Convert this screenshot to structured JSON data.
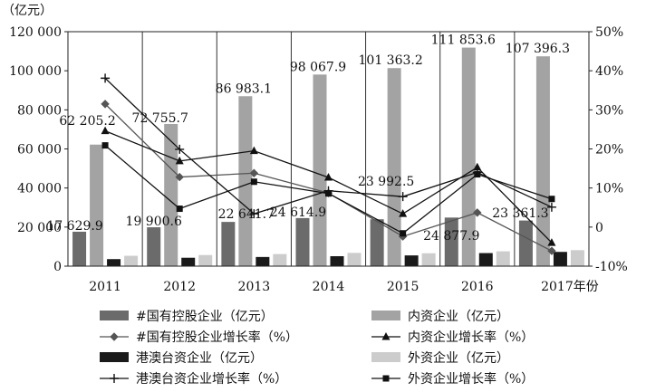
{
  "chart_data": {
    "type": "bar",
    "title": "",
    "y_unit_label": "（亿元）",
    "categories": [
      "2011",
      "2012",
      "2013",
      "2014",
      "2015",
      "2016",
      "2017年份"
    ],
    "ylim": [
      0,
      120000
    ],
    "y_ticks": [
      "0",
      "20 000",
      "40 000",
      "60 000",
      "80 000",
      "100 000",
      "120 000"
    ],
    "y2lim": [
      -10,
      50
    ],
    "y2_ticks": [
      "-10%",
      "0",
      "10%",
      "20%",
      "30%",
      "40%",
      "50%"
    ],
    "grid": "vertical",
    "legend_position": "bottom",
    "bar_series": [
      {
        "name": "#国有控股企业（亿元）",
        "color": "#6b6b6b",
        "values": [
          17629.9,
          19900.6,
          22641.7,
          24614.9,
          23992.5,
          24877.9,
          23361.3
        ]
      },
      {
        "name": "内资企业（亿元）",
        "color": "#a3a3a3",
        "values": [
          62205.2,
          72755.7,
          86983.1,
          98067.9,
          101363.2,
          111853.6,
          107396.3
        ]
      },
      {
        "name": "港澳台资企业（亿元）",
        "color": "#1a1a1a",
        "values": [
          3600,
          4300,
          4700,
          5100,
          5500,
          6700,
          7300
        ]
      },
      {
        "name": "外资企业（亿元）",
        "color": "#cccccc",
        "values": [
          5300,
          5700,
          6200,
          6800,
          6600,
          7600,
          8200
        ]
      }
    ],
    "line_series": [
      {
        "name": "#国有控股企业增长率（%）",
        "marker": "diamond",
        "values": [
          31.5,
          12.8,
          13.8,
          8.7,
          -2.4,
          3.7,
          -6.1
        ]
      },
      {
        "name": "内资企业增长率（%）",
        "marker": "triangle",
        "values": [
          24.6,
          16.9,
          19.5,
          12.7,
          3.4,
          15.3,
          -4.0
        ]
      },
      {
        "name": "港澳台资企业增长率（%）",
        "marker": "plus",
        "values": [
          38.1,
          19.9,
          3.4,
          9.3,
          7.8,
          14.0,
          5.1
        ]
      },
      {
        "name": "外资企业增长率（%）",
        "marker": "square",
        "values": [
          20.9,
          4.7,
          11.6,
          8.6,
          -1.6,
          13.5,
          7.2
        ]
      }
    ],
    "data_labels": [
      {
        "series": "#国有控股企业（亿元）",
        "index": 0,
        "text": "17 629.9"
      },
      {
        "series": "#国有控股企业（亿元）",
        "index": 1,
        "text": "19 900.6"
      },
      {
        "series": "#国有控股企业（亿元）",
        "index": 2,
        "text": "22 641.7"
      },
      {
        "series": "#国有控股企业（亿元）",
        "index": 3,
        "text": "24 614.9"
      },
      {
        "series": "#国有控股企业（亿元）",
        "index": 4,
        "text": "23 992.5"
      },
      {
        "series": "#国有控股企业（亿元）",
        "index": 5,
        "text": "24 877.9"
      },
      {
        "series": "#国有控股企业（亿元）",
        "index": 6,
        "text": "23 361.3"
      },
      {
        "series": "内资企业（亿元）",
        "index": 0,
        "text": "62 205.2"
      },
      {
        "series": "内资企业（亿元）",
        "index": 1,
        "text": "72 755.7"
      },
      {
        "series": "内资企业（亿元）",
        "index": 2,
        "text": "86 983.1"
      },
      {
        "series": "内资企业（亿元）",
        "index": 3,
        "text": "98 067.9"
      },
      {
        "series": "内资企业（亿元）",
        "index": 4,
        "text": "101 363.2"
      },
      {
        "series": "内资企业（亿元）",
        "index": 5,
        "text": "111 853.6"
      },
      {
        "series": "内资企业（亿元）",
        "index": 6,
        "text": "107 396.3"
      }
    ]
  }
}
